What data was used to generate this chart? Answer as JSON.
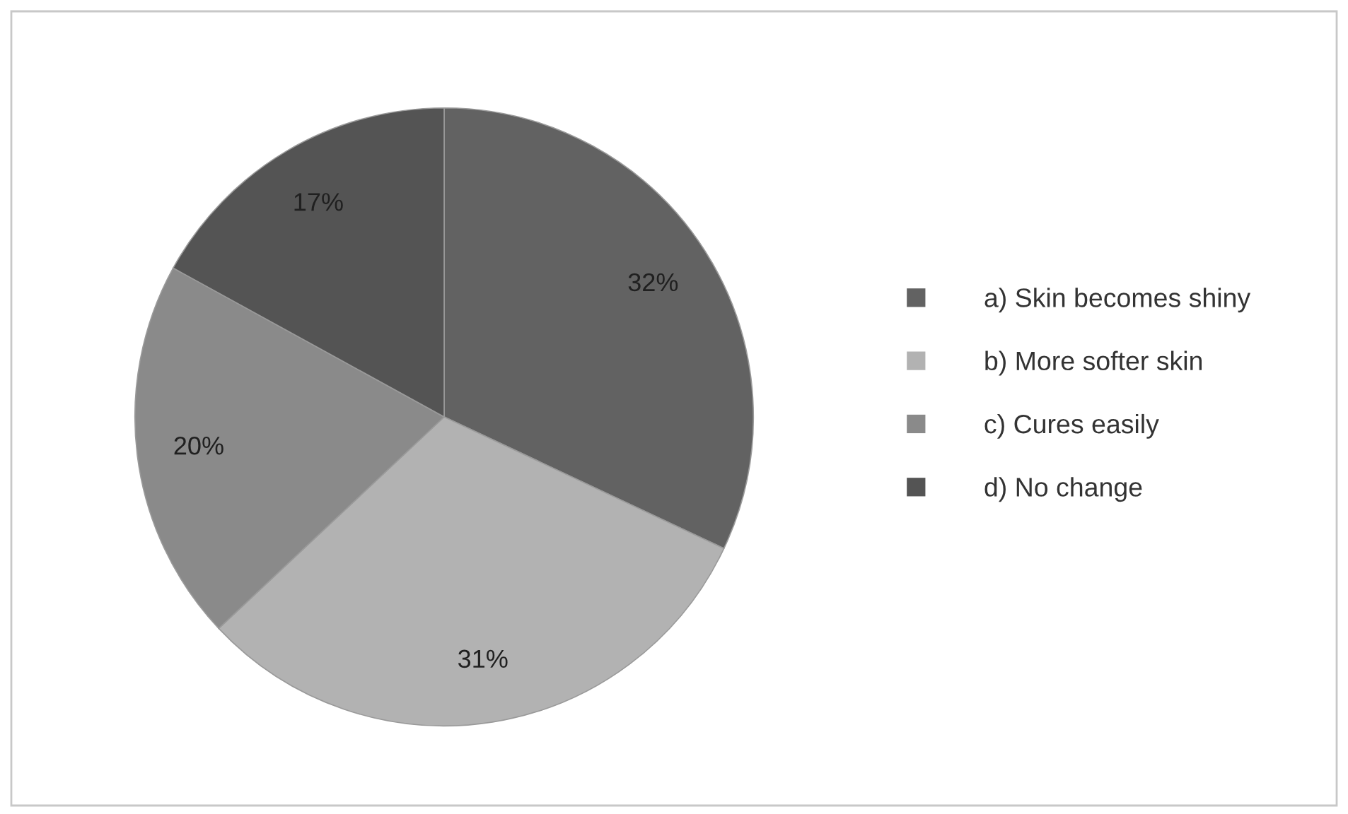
{
  "chart_data": {
    "type": "pie",
    "categories": [
      "a) Skin becomes shiny",
      "b) More softer skin",
      "c) Cures easily",
      "d) No change"
    ],
    "values": [
      32,
      31,
      20,
      17
    ],
    "value_labels": [
      "32%",
      "31%",
      "20%",
      "17%"
    ],
    "colors": [
      "#626262",
      "#b2b2b2",
      "#8a8a8a",
      "#545454"
    ],
    "legend": "right"
  }
}
